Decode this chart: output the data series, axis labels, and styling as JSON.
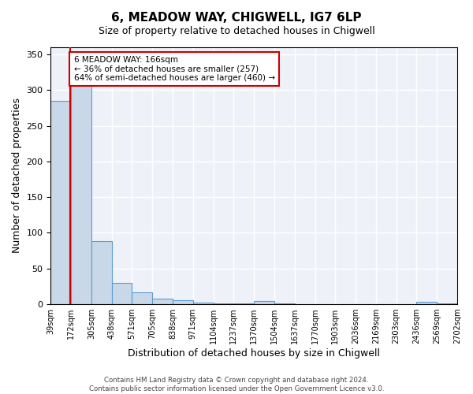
{
  "title": "6, MEADOW WAY, CHIGWELL, IG7 6LP",
  "subtitle": "Size of property relative to detached houses in Chigwell",
  "xlabel": "Distribution of detached houses by size in Chigwell",
  "ylabel": "Number of detached properties",
  "bin_labels": [
    "39sqm",
    "172sqm",
    "305sqm",
    "438sqm",
    "571sqm",
    "705sqm",
    "838sqm",
    "971sqm",
    "1104sqm",
    "1237sqm",
    "1370sqm",
    "1504sqm",
    "1637sqm",
    "1770sqm",
    "1903sqm",
    "2036sqm",
    "2169sqm",
    "2303sqm",
    "2436sqm",
    "2569sqm",
    "2702sqm"
  ],
  "bar_heights": [
    285,
    330,
    88,
    30,
    17,
    8,
    6,
    2,
    1,
    1,
    4,
    1,
    0,
    0,
    0,
    0,
    0,
    0,
    3,
    1
  ],
  "bar_color": "#c8d8e8",
  "bar_edge_color": "#5b9bd5",
  "bg_color": "#eef2f8",
  "grid_color": "#ffffff",
  "annotation_text": "6 MEADOW WAY: 166sqm\n← 36% of detached houses are smaller (257)\n64% of semi-detached houses are larger (460) →",
  "annotation_box_color": "#ffffff",
  "annotation_box_edge": "#cc0000",
  "vline_x": 166,
  "vline_color": "#cc0000",
  "ylim": [
    0,
    360
  ],
  "yticks": [
    0,
    50,
    100,
    150,
    200,
    250,
    300,
    350
  ],
  "footer_text": "Contains HM Land Registry data © Crown copyright and database right 2024.\nContains public sector information licensed under the Open Government Licence v3.0.",
  "bin_edges": [
    39,
    172,
    305,
    438,
    571,
    705,
    838,
    971,
    1104,
    1237,
    1370,
    1504,
    1637,
    1770,
    1903,
    2036,
    2169,
    2303,
    2436,
    2569,
    2702
  ]
}
